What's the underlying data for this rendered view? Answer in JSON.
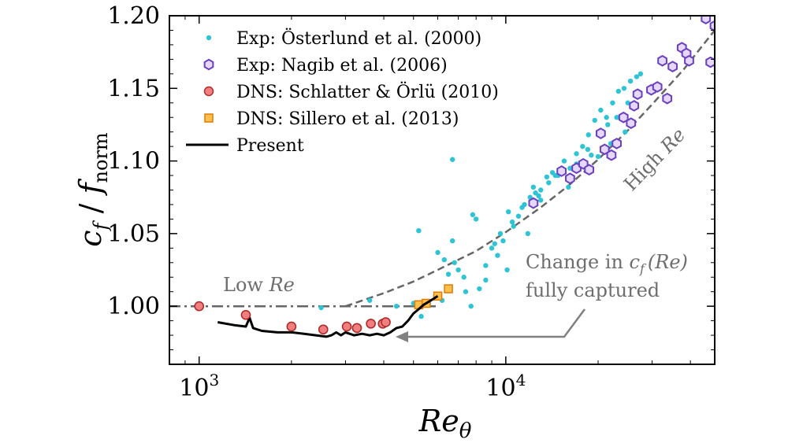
{
  "chart_data": {
    "type": "scatter",
    "xscale": "log",
    "xlim": [
      800,
      48000
    ],
    "ylim": [
      0.96,
      1.2
    ],
    "xticks_major": [
      {
        "value": 1000,
        "base": "10",
        "exp": "3"
      },
      {
        "value": 10000,
        "base": "10",
        "exp": "4"
      }
    ],
    "yticks": [
      {
        "value": 1.0,
        "label": "1.00"
      },
      {
        "value": 1.05,
        "label": "1.05"
      },
      {
        "value": 1.1,
        "label": "1.10"
      },
      {
        "value": 1.15,
        "label": "1.15"
      },
      {
        "value": 1.2,
        "label": "1.20"
      }
    ],
    "xlabel": {
      "main": "Re",
      "sub": "θ"
    },
    "ylabel": {
      "c": "c",
      "c_sub": "f",
      "slash": " / ",
      "f": "f",
      "f_sub": "norm"
    },
    "legend_position": "top-left",
    "series": [
      {
        "name": "Exp: Österlund et al. (2000)",
        "marker": "dot",
        "color": "#2ec4d6",
        "x": [
          2500,
          3600,
          4400,
          5000,
          5300,
          5600,
          5900,
          6200,
          6500,
          6700,
          6800,
          7000,
          7300,
          7700,
          8200,
          8600,
          9000,
          9400,
          9800,
          10200,
          10600,
          11000,
          11500,
          12000,
          12500,
          13000,
          13600,
          14200,
          14800,
          15500,
          16200,
          17000,
          17800,
          18600,
          19500,
          20400,
          21300,
          22300,
          23300,
          24300,
          25500,
          26700,
          27500,
          6700,
          7800,
          9600,
          11300,
          13000,
          16000,
          19000,
          22000,
          25000,
          5200,
          6300,
          7400,
          8600,
          10100,
          11800,
          13800,
          16000,
          18500,
          21500,
          24500,
          8000,
          10500,
          12300,
          14500,
          17000,
          20000,
          23000,
          6000,
          9200,
          12800
        ],
        "y": [
          0.999,
          1.004,
          1.0,
          1.002,
          0.993,
          1.002,
          1.007,
          1.004,
          1.022,
          1.101,
          1.03,
          1.025,
          1.02,
          1.0,
          1.012,
          1.028,
          1.04,
          1.035,
          1.045,
          1.065,
          1.055,
          1.062,
          1.07,
          1.075,
          1.078,
          1.08,
          1.089,
          1.092,
          1.09,
          1.1,
          1.095,
          1.105,
          1.11,
          1.118,
          1.128,
          1.135,
          1.13,
          1.14,
          1.148,
          1.15,
          1.155,
          1.158,
          1.16,
          1.045,
          1.063,
          1.05,
          1.068,
          1.073,
          1.082,
          1.104,
          1.112,
          1.14,
          1.052,
          1.032,
          1.01,
          1.018,
          1.025,
          1.05,
          1.085,
          1.088,
          1.108,
          1.125,
          1.12,
          1.06,
          1.058,
          1.082,
          1.09,
          1.098,
          1.103,
          1.13,
          1.037,
          1.043,
          1.076
        ]
      },
      {
        "name": "Exp: Nagib et al. (2006)",
        "marker": "hexagon",
        "color": "#6a3fc0",
        "x": [
          12300,
          15200,
          16200,
          17000,
          17900,
          18700,
          20400,
          21000,
          22100,
          23000,
          24200,
          25600,
          26200,
          26900,
          29800,
          31200,
          32400,
          33600,
          35000,
          37500,
          38800,
          39600,
          44900,
          46500,
          48000
        ],
        "y": [
          1.071,
          1.093,
          1.088,
          1.095,
          1.098,
          1.094,
          1.119,
          1.108,
          1.104,
          1.112,
          1.13,
          1.126,
          1.138,
          1.146,
          1.149,
          1.151,
          1.169,
          1.143,
          1.165,
          1.178,
          1.174,
          1.169,
          1.198,
          1.168,
          1.193
        ]
      },
      {
        "name": "DNS: Schlatter & Örlü (2010)",
        "marker": "circle",
        "color": "#e05555",
        "x": [
          1000,
          1420,
          2000,
          2540,
          3030,
          3270,
          3630,
          3970,
          4060
        ],
        "y": [
          1.0,
          0.994,
          0.986,
          0.984,
          0.986,
          0.985,
          0.988,
          0.988,
          0.989
        ]
      },
      {
        "name": "DNS: Sillero et al. (2013)",
        "marker": "square",
        "color": "#f5a623",
        "x": [
          5200,
          5500,
          6000,
          6500
        ],
        "y": [
          1.001,
          1.002,
          1.007,
          1.012
        ]
      },
      {
        "name": "Present",
        "marker": "line",
        "color": "#000000",
        "x": [
          1150,
          1300,
          1420,
          1460,
          1500,
          1600,
          1800,
          2000,
          2200,
          2400,
          2600,
          2700,
          2800,
          2900,
          3000,
          3200,
          3400,
          3600,
          3800,
          4000,
          4200,
          4400,
          4600,
          4800,
          5000,
          5200,
          5400,
          5600,
          5800,
          6000
        ],
        "y": [
          0.989,
          0.987,
          0.986,
          0.992,
          0.985,
          0.983,
          0.982,
          0.982,
          0.981,
          0.98,
          0.979,
          0.98,
          0.982,
          0.98,
          0.982,
          0.98,
          0.981,
          0.98,
          0.981,
          0.98,
          0.982,
          0.985,
          0.986,
          0.99,
          0.995,
          0.998,
          1.001,
          1.003,
          1.005,
          1.007
        ]
      }
    ],
    "reference_lines": [
      {
        "label_prefix": "Low ",
        "label_italic": "Re",
        "style": "dash-dot",
        "color": "#666666",
        "x": [
          800,
          6000
        ],
        "y": [
          1.0,
          1.0
        ]
      },
      {
        "label_prefix": "High ",
        "label_italic": "Re",
        "style": "dashed",
        "color": "#666666",
        "x": [
          3000,
          4000,
          5000,
          6000,
          8000,
          10000,
          13000,
          16000,
          20000,
          25000,
          30000,
          38000,
          48000
        ],
        "y": [
          1.0,
          1.009,
          1.017,
          1.025,
          1.038,
          1.051,
          1.068,
          1.083,
          1.101,
          1.121,
          1.139,
          1.163,
          1.19
        ]
      }
    ],
    "annotation": {
      "line1_prefix": "Change in ",
      "line1_c": "c",
      "line1_c_sub": "f",
      "line1_paren": "(Re)",
      "line2": "fully captured",
      "arrow_to": [
        4500,
        0.983
      ]
    }
  }
}
